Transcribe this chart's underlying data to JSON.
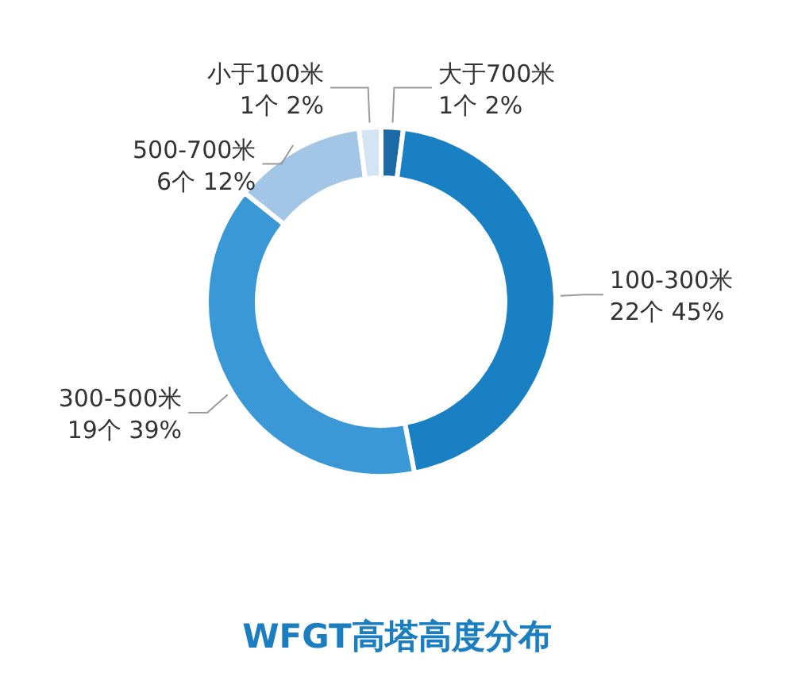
{
  "chart_data": {
    "type": "donut",
    "title": "WFGT高塔高度分布",
    "categories": [
      "大于700米",
      "100-300米",
      "300-500米",
      "500-700米",
      "小于100米"
    ],
    "values": [
      1,
      22,
      19,
      6,
      1
    ],
    "value_labels": [
      "1个 2%",
      "22个 45%",
      "19个 39%",
      "6个 12%",
      "1个 2%"
    ],
    "colors": [
      "#1b6aa5",
      "#1a80c4",
      "#3b98d6",
      "#a3c6e6",
      "#d3e4f3"
    ],
    "legend": false
  }
}
